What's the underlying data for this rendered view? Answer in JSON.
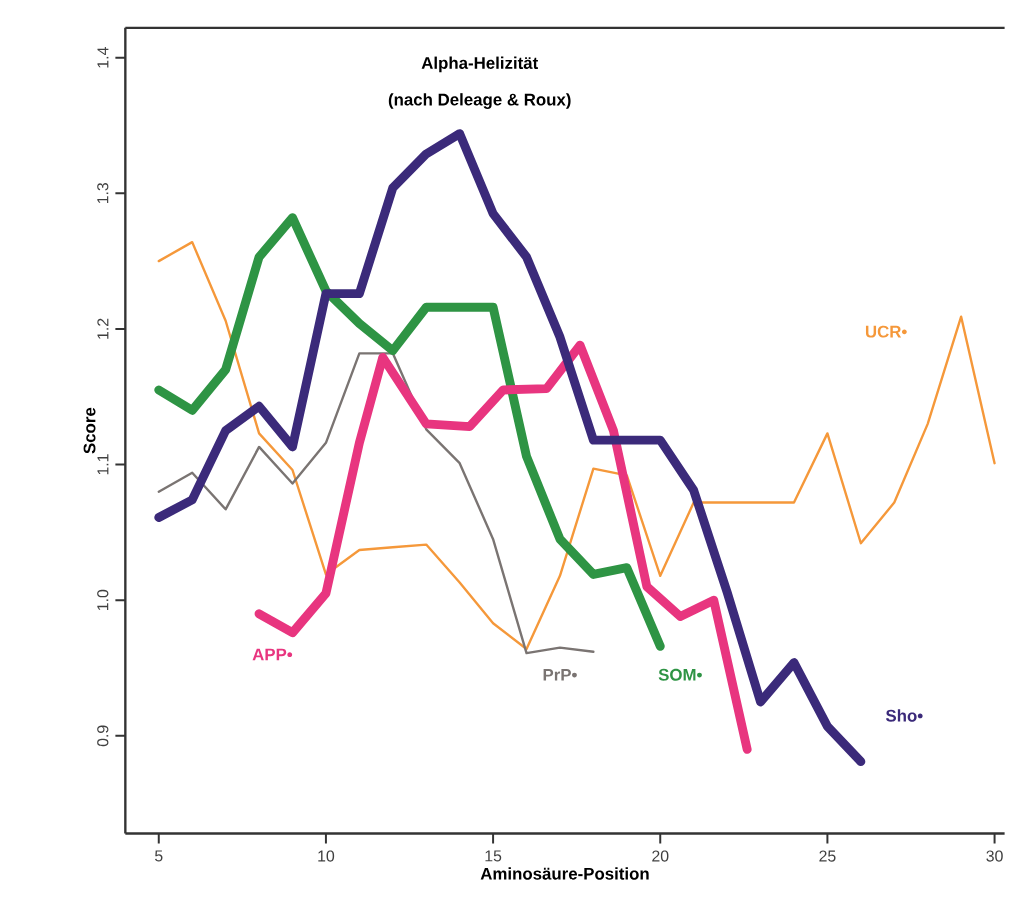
{
  "chart_data": {
    "type": "line",
    "title": "Alpha-Helizität",
    "subtitle": "(nach Deleage & Roux)",
    "xlabel": "Aminosäure-Position",
    "ylabel": "Score",
    "xlim": [
      4,
      30.3
    ],
    "ylim": [
      0.828,
      1.422
    ],
    "xticks": [
      5,
      10,
      15,
      20,
      25,
      30
    ],
    "yticks": [
      0.9,
      {
        "value": 1.0,
        "label": "1.0"
      },
      1.1,
      1.2,
      1.3,
      1.4
    ],
    "grid": false,
    "marker": "none",
    "line_style": "solid",
    "series": [
      {
        "name": "UCR•",
        "color": "#f5983a",
        "x": [
          5,
          6,
          7,
          8,
          9,
          10,
          11,
          12,
          13,
          14,
          15,
          16,
          17,
          18,
          19,
          20,
          21,
          22,
          23,
          24,
          25,
          26,
          27,
          28,
          29,
          30
        ],
        "values": [
          1.25,
          1.264,
          1.206,
          1.123,
          1.096,
          1.019,
          1.037,
          1.039,
          1.041,
          1.013,
          0.983,
          0.964,
          1.018,
          1.097,
          1.092,
          1.018,
          1.072,
          1.072,
          1.072,
          1.072,
          1.123,
          1.042,
          1.072,
          1.13,
          1.209,
          1.101
        ]
      },
      {
        "name": "PrP•",
        "color": "#7a7472",
        "x": [
          5,
          6,
          7,
          8,
          9,
          10,
          11,
          12,
          13,
          14,
          15,
          16,
          17,
          18
        ],
        "values": [
          1.08,
          1.094,
          1.067,
          1.113,
          1.086,
          1.116,
          1.182,
          1.182,
          1.126,
          1.101,
          1.045,
          0.961,
          0.965,
          0.962
        ]
      },
      {
        "name": "SOM•",
        "color": "#2e9444",
        "x": [
          5,
          6,
          7,
          8,
          9,
          10,
          11,
          12,
          13,
          14,
          15,
          16,
          17,
          18,
          19,
          20
        ],
        "values": [
          1.155,
          1.14,
          1.17,
          1.253,
          1.282,
          1.228,
          1.204,
          1.184,
          1.216,
          1.216,
          1.216,
          1.106,
          1.045,
          1.019,
          1.024,
          0.966
        ]
      },
      {
        "name": "APP•",
        "color": "#e8357f",
        "x": [
          8,
          9,
          10,
          11,
          11.7,
          13,
          14.3,
          15.3,
          16.6,
          17.6,
          18.6,
          19.6,
          20.6,
          21.6,
          22.6
        ],
        "values": [
          0.99,
          0.976,
          1.005,
          1.116,
          1.179,
          1.13,
          1.128,
          1.155,
          1.156,
          1.188,
          1.125,
          1.01,
          0.988,
          1.0,
          0.89
        ]
      },
      {
        "name": "Sho•",
        "color": "#3b2a7a",
        "x": [
          5,
          6,
          7,
          8,
          9,
          10,
          11,
          12,
          13,
          14,
          15,
          16,
          17,
          18,
          19,
          20,
          21,
          22,
          23,
          24,
          25,
          26
        ],
        "values": [
          1.061,
          1.074,
          1.125,
          1.143,
          1.113,
          1.226,
          1.226,
          1.304,
          1.329,
          1.344,
          1.285,
          1.253,
          1.194,
          1.118,
          1.118,
          1.118,
          1.081,
          1.006,
          0.925,
          0.954,
          0.907,
          0.881
        ]
      }
    ]
  }
}
